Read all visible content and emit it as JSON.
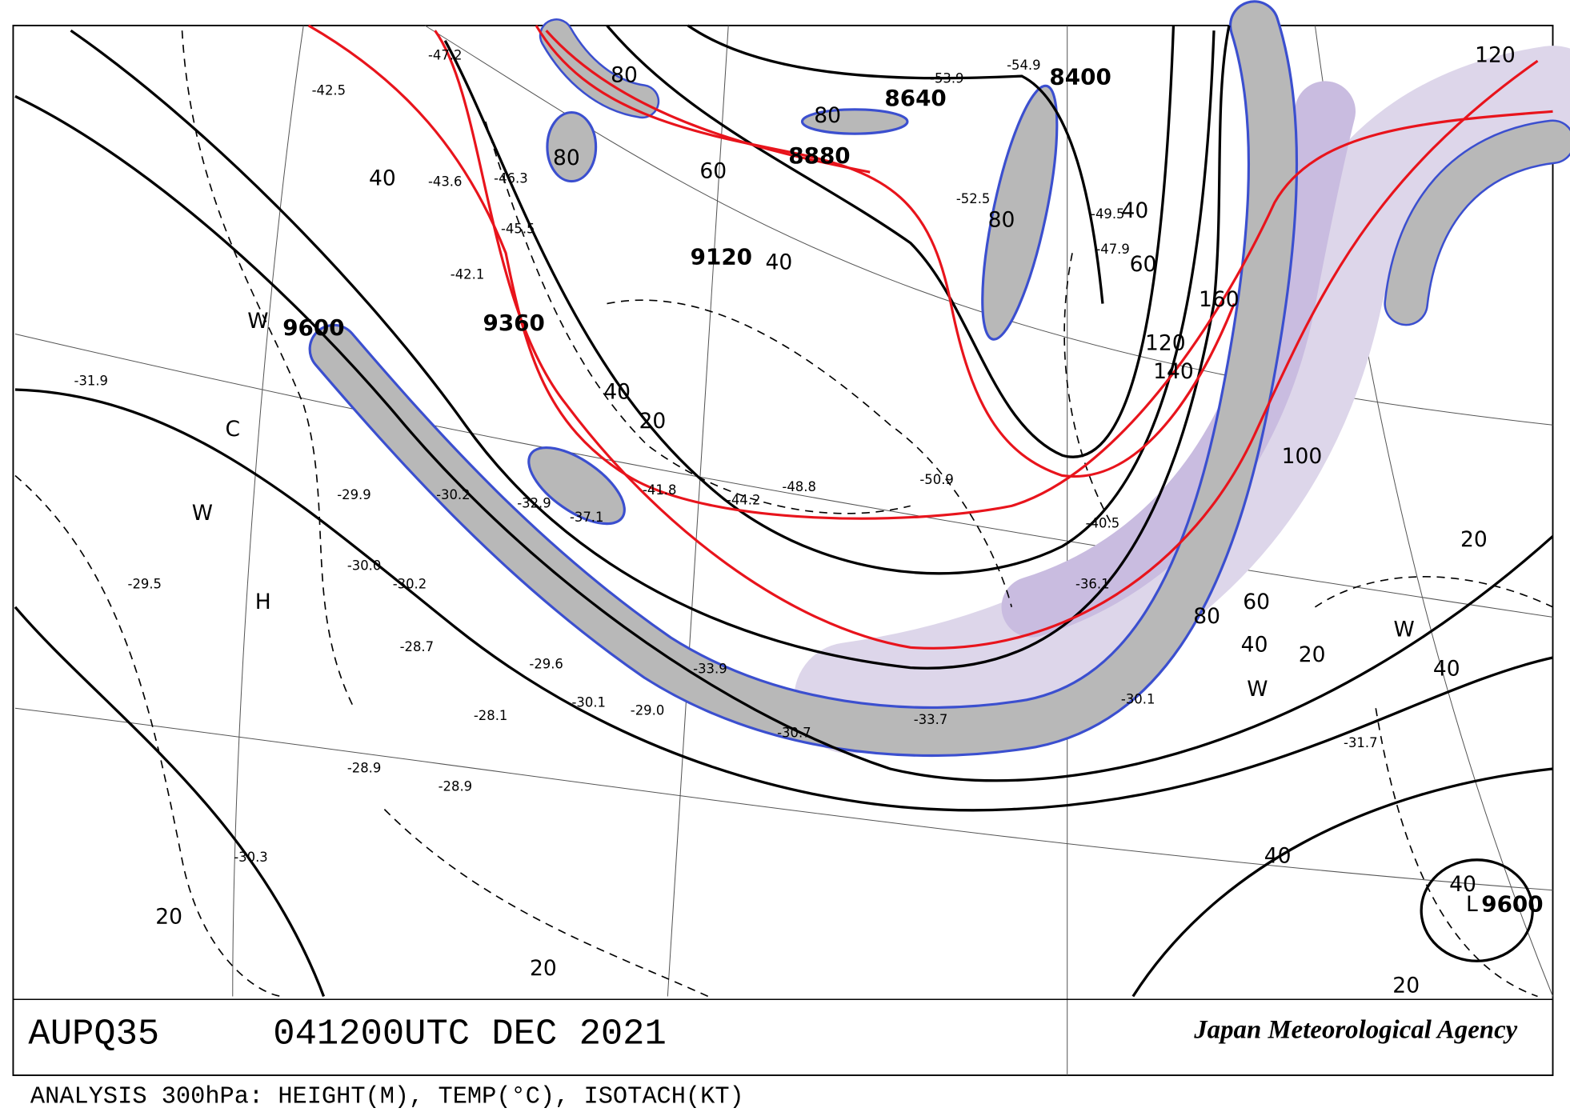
{
  "header": {
    "chart_id": "AUPQ35",
    "valid_time": "041200UTC DEC 2021",
    "agency": "Japan Meteorological Agency"
  },
  "footer": {
    "caption": "ANALYSIS 300hPa: HEIGHT(M), TEMP(°C), ISOTACH(KT)"
  },
  "map_labels": {
    "heights": [
      "9600",
      "9360",
      "9120",
      "8880",
      "8640",
      "8400",
      "9600"
    ],
    "isotachs": [
      "40",
      "60",
      "80",
      "80",
      "80",
      "80",
      "40",
      "40",
      "20",
      "40",
      "60",
      "160",
      "120",
      "140",
      "100",
      "120",
      "80",
      "60",
      "40",
      "20",
      "20",
      "40",
      "40",
      "40",
      "20",
      "20",
      "20"
    ],
    "markers": [
      "W",
      "C",
      "W",
      "H",
      "W",
      "W",
      "L"
    ],
    "temperatures": [
      "-54.9",
      "-53.9",
      "-52.5",
      "-49.5",
      "-47.9",
      "-46.3",
      "-45.5",
      "-43.6",
      "-42.1",
      "-47.2",
      "-42.5",
      "-50.9",
      "-48.8",
      "-44.2",
      "-41.8",
      "-37.1",
      "-32.9",
      "-30.2",
      "-29.9",
      "-30.0",
      "-30.2",
      "-28.7",
      "-28.1",
      "-29.6",
      "-30.1",
      "-29.0",
      "-33.9",
      "-30.7",
      "-33.7",
      "-36.1",
      "-40.5",
      "-31.7",
      "-30.1",
      "-28.9",
      "-28.9",
      "-30.3",
      "-29.5",
      "-31.9"
    ]
  }
}
